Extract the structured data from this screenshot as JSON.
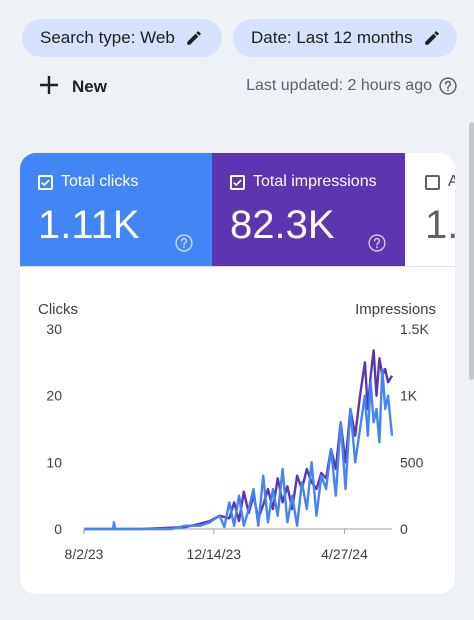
{
  "filters": {
    "search_type": "Search type: Web",
    "date": "Date: Last 12 months"
  },
  "toolbar": {
    "new_label": "New",
    "last_updated": "Last updated: 2 hours ago"
  },
  "metrics": [
    {
      "label": "Total clicks",
      "value": "1.11K",
      "checked": true,
      "color": "#4285f4"
    },
    {
      "label": "Total impressions",
      "value": "82.3K",
      "checked": true,
      "color": "#5e35b1"
    },
    {
      "label": "A",
      "value": "1.",
      "checked": false
    }
  ],
  "chart_data": {
    "type": "line",
    "y_left_label": "Clicks",
    "y_right_label": "Impressions",
    "y_left_ticks": [
      "30",
      "20",
      "10",
      "0"
    ],
    "y_right_ticks": [
      "1.5K",
      "1K",
      "500",
      "0"
    ],
    "ylim_left": [
      0,
      30
    ],
    "ylim_right": [
      0,
      1500
    ],
    "x_ticks": [
      "8/2/23",
      "12/14/23",
      "4/27/24"
    ],
    "x_tick_positions": [
      0,
      134,
      269
    ],
    "x_range": [
      0,
      318
    ],
    "series": [
      {
        "name": "Total impressions",
        "color": "#5e35b1",
        "x": [
          0,
          30,
          60,
          90,
          105,
          120,
          130,
          140,
          150,
          155,
          160,
          165,
          170,
          175,
          180,
          185,
          190,
          195,
          200,
          205,
          210,
          215,
          220,
          225,
          230,
          235,
          240,
          245,
          250,
          255,
          260,
          265,
          270,
          275,
          280,
          285,
          290,
          293,
          296,
          299,
          302,
          305,
          308,
          311,
          314,
          318
        ],
        "values": [
          0,
          0,
          0,
          10,
          15,
          40,
          60,
          100,
          80,
          200,
          60,
          280,
          120,
          250,
          80,
          180,
          300,
          150,
          380,
          200,
          320,
          150,
          400,
          300,
          450,
          350,
          300,
          420,
          380,
          600,
          450,
          800,
          500,
          900,
          700,
          1000,
          1250,
          900,
          1150,
          1340,
          1000,
          1280,
          1150,
          1200,
          1100,
          1150
        ]
      },
      {
        "name": "Total clicks",
        "color": "#4285f4",
        "x": [
          0,
          30,
          31,
          32,
          60,
          90,
          105,
          120,
          130,
          140,
          145,
          150,
          155,
          160,
          165,
          170,
          175,
          180,
          185,
          190,
          195,
          200,
          205,
          210,
          215,
          220,
          225,
          230,
          235,
          240,
          245,
          250,
          255,
          260,
          265,
          270,
          275,
          280,
          285,
          290,
          293,
          296,
          299,
          302,
          305,
          308,
          311,
          314,
          318
        ],
        "values": [
          0,
          0,
          1,
          0,
          0,
          0,
          0.5,
          0.5,
          1,
          2,
          0.3,
          4,
          0.5,
          5,
          0.5,
          3,
          6,
          0.5,
          8,
          1,
          6,
          2,
          9,
          1,
          5,
          0.5,
          7,
          3,
          10,
          2,
          8,
          6,
          12,
          5,
          16,
          6,
          18,
          10,
          15,
          20,
          14,
          22,
          16,
          18,
          13,
          24,
          18,
          20,
          14
        ]
      }
    ]
  },
  "colors": {
    "chip_bg": "#d6e2fb",
    "clicks": "#4285f4",
    "impressions": "#5e35b1",
    "page_bg": "#eef1f6"
  },
  "icons": {
    "chip_icon": "pencil-icon",
    "help_icon": "help-circle-icon",
    "new_icon": "plus-icon",
    "checkbox_icon": "check-icon"
  }
}
